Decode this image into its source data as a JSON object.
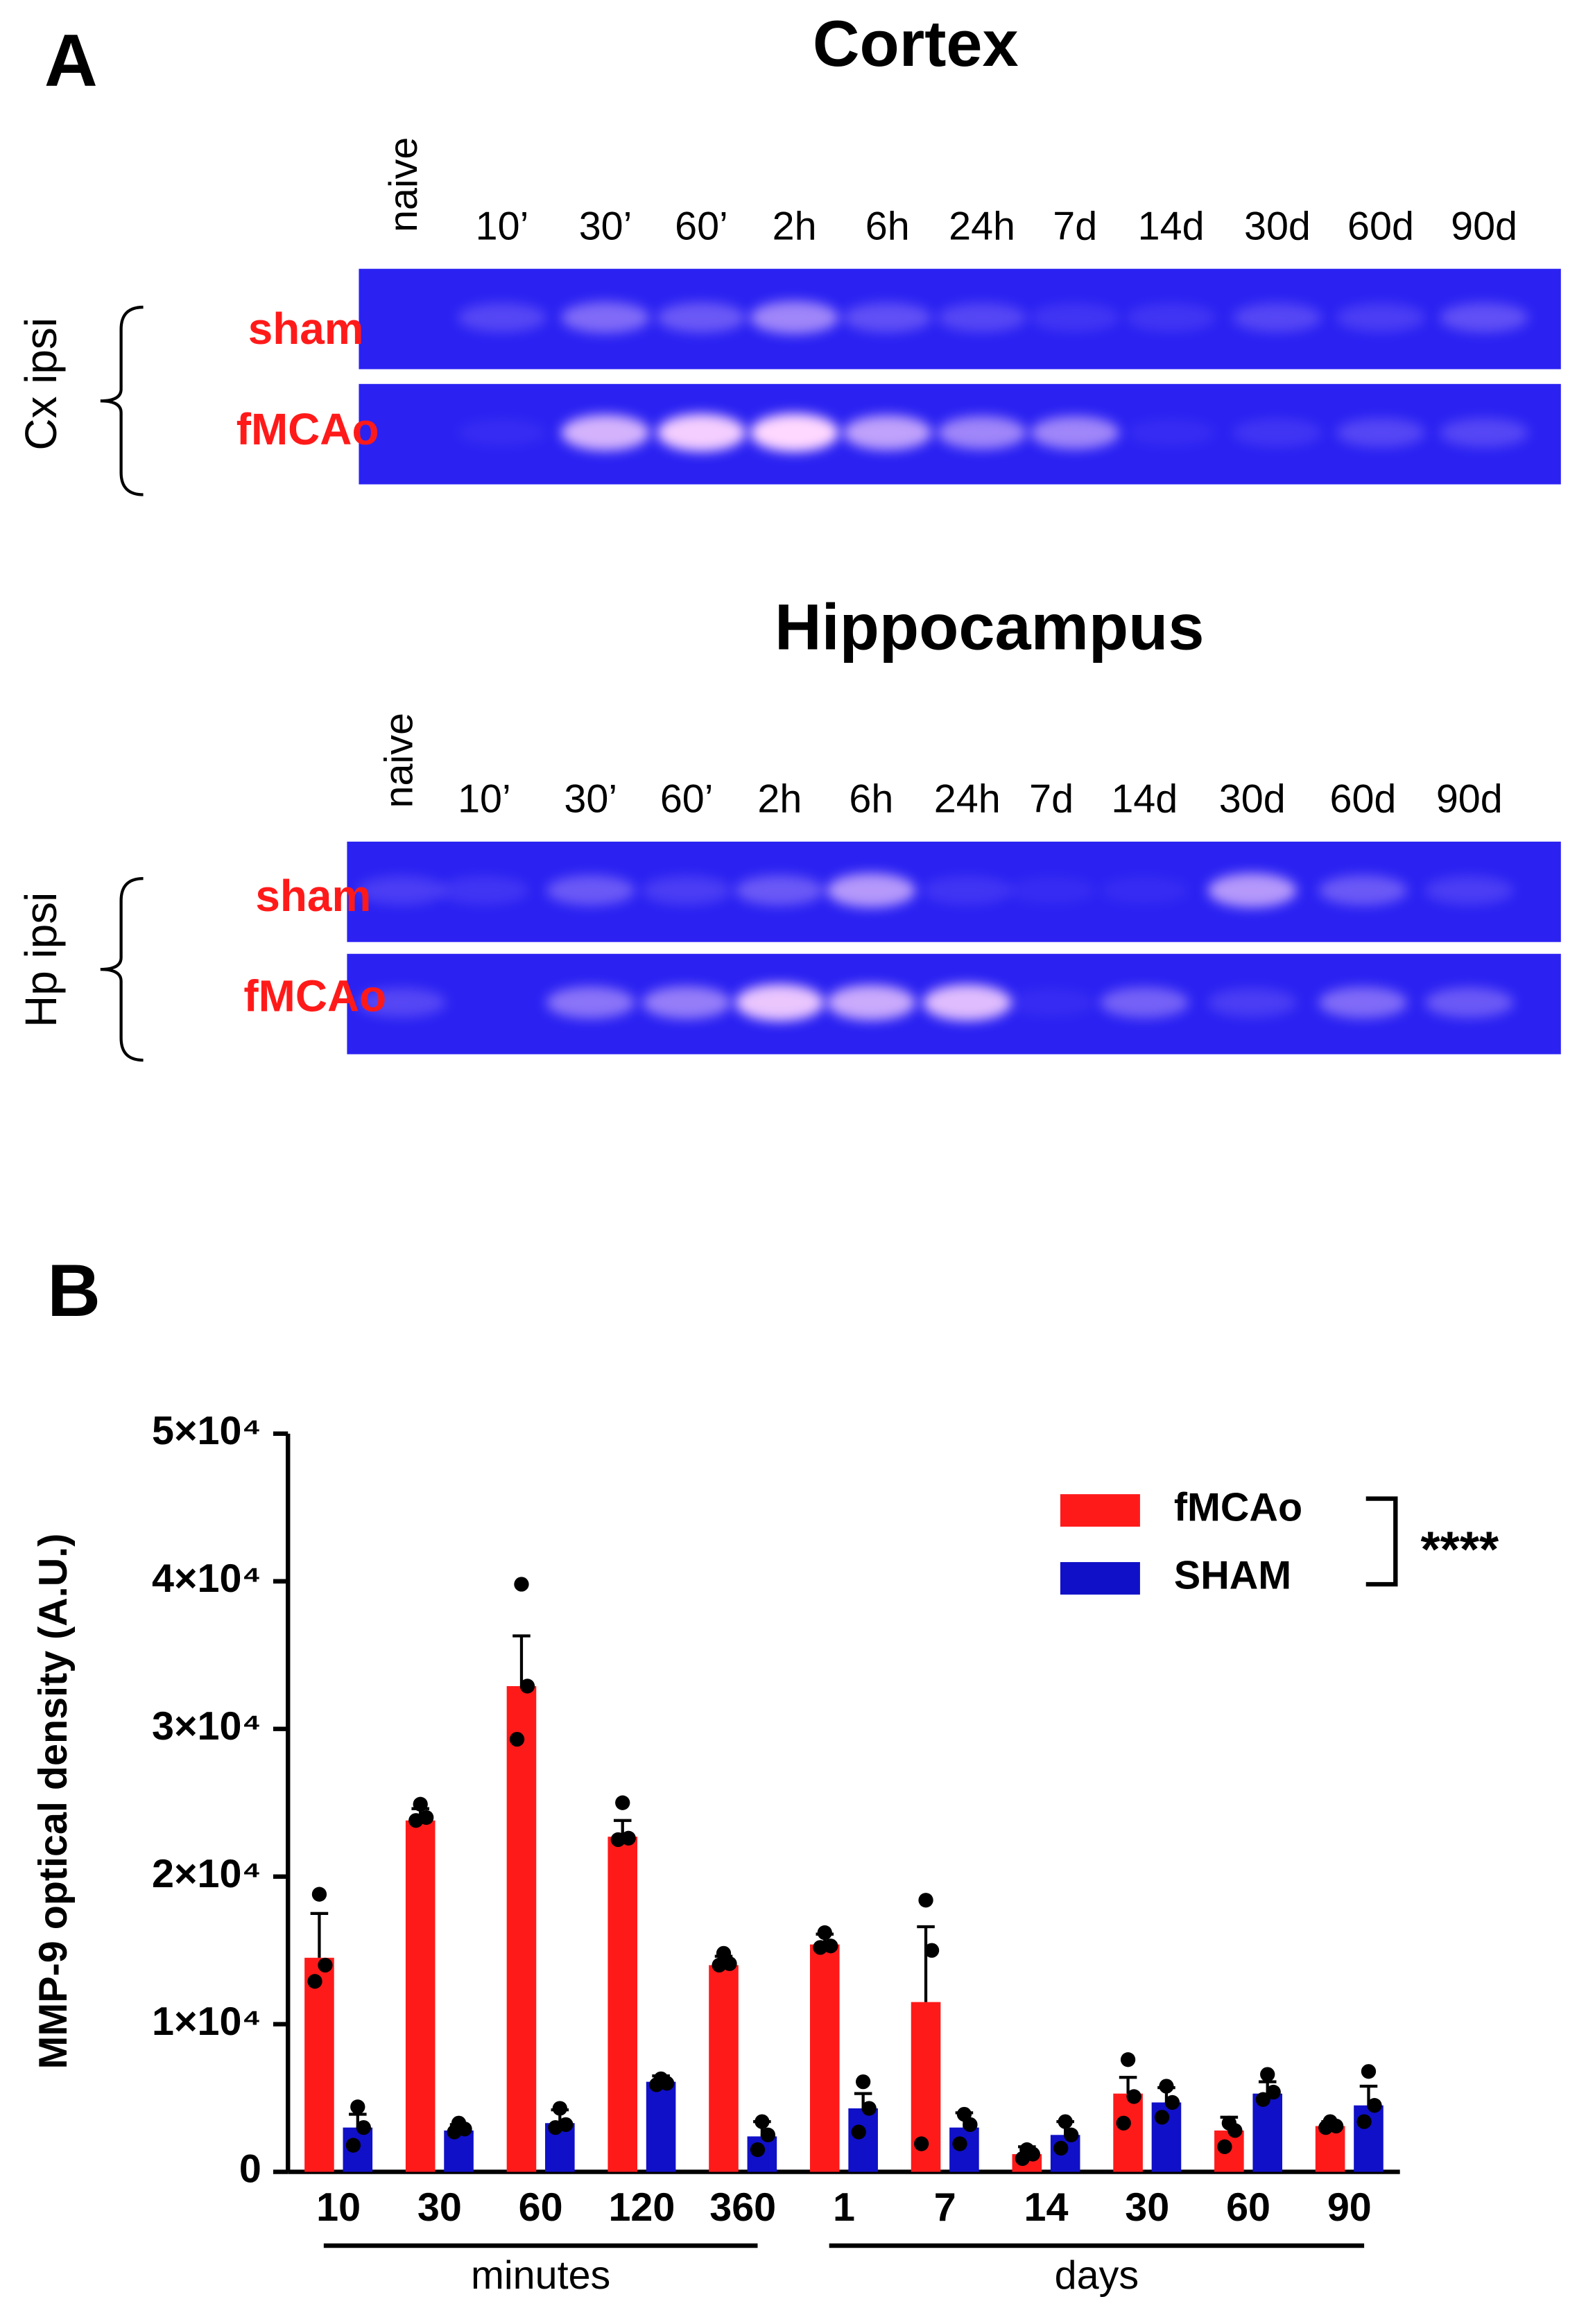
{
  "panel_a": {
    "label": "A",
    "gels": [
      {
        "title": "Cortex",
        "region": "Cx ipsi",
        "rows": [
          "sham",
          "fMCAo"
        ],
        "lanes": [
          "naive",
          "10’",
          "30’",
          "60’",
          "2h",
          "6h",
          "24h",
          "7d",
          "14d",
          "30d",
          "60d",
          "90d"
        ]
      },
      {
        "title": "Hippocampus",
        "region": "Hp ipsi",
        "rows": [
          "sham",
          "fMCAo"
        ],
        "lanes": [
          "naive",
          "10’",
          "30’",
          "60’",
          "2h",
          "6h",
          "24h",
          "7d",
          "14d",
          "30d",
          "60d",
          "90d"
        ]
      }
    ]
  },
  "chart_data": {
    "type": "bar",
    "panel_label": "B",
    "y_label": "MMP-9 optical density (A.U.)",
    "categories": [
      "10",
      "30",
      "60",
      "120",
      "360",
      "1",
      "7",
      "14",
      "30",
      "60",
      "90"
    ],
    "groups": [
      "minutes",
      "days"
    ],
    "ylim": [
      0,
      50000
    ],
    "yticks": [
      0,
      {
        "value": 10000,
        "label": "1×10⁴"
      },
      {
        "value": 20000,
        "label": "2×10⁴"
      },
      {
        "value": 30000,
        "label": "3×10⁴"
      },
      {
        "value": 40000,
        "label": "4×10⁴"
      },
      {
        "value": 50000,
        "label": "5×10⁴"
      }
    ],
    "significance": "****",
    "series": [
      {
        "name": "fMCAo",
        "color": "#ff1a1a",
        "values": [
          14500,
          23800,
          32900,
          22700,
          14000,
          15400,
          11500,
          1200,
          5300,
          2800,
          3100
        ],
        "errors": [
          3000,
          800,
          3400,
          1100,
          600,
          700,
          5100,
          500,
          1100,
          900,
          300
        ],
        "points": [
          [
            18800,
            14000,
            12900
          ],
          [
            24900,
            24000,
            23800
          ],
          [
            39800,
            32900,
            29300
          ],
          [
            25000,
            22600,
            22500
          ],
          [
            14800,
            14100,
            14000
          ],
          [
            16200,
            15300,
            15200
          ],
          [
            18400,
            15000,
            1900
          ],
          [
            1500,
            1200,
            900
          ],
          [
            7600,
            5100,
            3300
          ],
          [
            3300,
            2800,
            1700
          ],
          [
            3400,
            3100,
            3000
          ]
        ]
      },
      {
        "name": "SHAM",
        "color": "#1010c8",
        "values": [
          3000,
          2800,
          3300,
          6100,
          2400,
          4300,
          3000,
          2500,
          4700,
          5300,
          4500
        ],
        "errors": [
          900,
          400,
          900,
          400,
          1000,
          1000,
          1000,
          900,
          1000,
          800,
          1300
        ],
        "points": [
          [
            4400,
            3000,
            1800
          ],
          [
            3300,
            2900,
            2700
          ],
          [
            4300,
            3200,
            3000
          ],
          [
            6300,
            6000,
            5900
          ],
          [
            3400,
            2500,
            1500
          ],
          [
            6100,
            4300,
            2700
          ],
          [
            3900,
            3200,
            1900
          ],
          [
            3400,
            2500,
            1600
          ],
          [
            5800,
            4700,
            3700
          ],
          [
            6600,
            5400,
            4900
          ],
          [
            6800,
            4500,
            3400
          ]
        ]
      }
    ]
  }
}
